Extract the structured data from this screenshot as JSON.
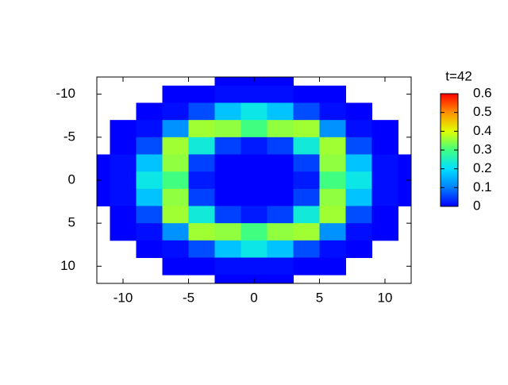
{
  "chart_data": {
    "type": "heatmap",
    "title": "t=42",
    "x": [
      -12,
      -10,
      -8,
      -6,
      -4,
      -2,
      0,
      2,
      4,
      6,
      8,
      10,
      12
    ],
    "y": [
      -12,
      -10,
      -8,
      -6,
      -4,
      -2,
      0,
      2,
      4,
      6,
      8,
      10,
      12
    ],
    "z": [
      [
        null,
        null,
        null,
        null,
        null,
        0,
        0,
        0,
        null,
        null,
        null,
        null,
        null
      ],
      [
        null,
        null,
        null,
        0,
        0,
        0.01,
        0.01,
        0.01,
        0,
        0,
        null,
        null,
        null
      ],
      [
        null,
        null,
        0,
        0.01,
        0.06,
        0.17,
        0.22,
        0.17,
        0.06,
        0.01,
        0,
        null,
        null
      ],
      [
        null,
        0,
        0.01,
        0.12,
        0.36,
        0.35,
        0.3,
        0.35,
        0.36,
        0.12,
        0.01,
        0,
        null
      ],
      [
        null,
        0,
        0.06,
        0.36,
        0.23,
        0.05,
        0.02,
        0.05,
        0.23,
        0.36,
        0.06,
        0,
        null
      ],
      [
        0,
        0.01,
        0.17,
        0.35,
        0.05,
        0,
        0,
        0,
        0.05,
        0.35,
        0.17,
        0.01,
        0
      ],
      [
        0,
        0.01,
        0.22,
        0.3,
        0.02,
        0,
        0,
        0,
        0.02,
        0.3,
        0.22,
        0.01,
        0
      ],
      [
        0,
        0.01,
        0.17,
        0.35,
        0.05,
        0,
        0,
        0,
        0.05,
        0.35,
        0.17,
        0.01,
        0
      ],
      [
        null,
        0,
        0.06,
        0.36,
        0.23,
        0.05,
        0.02,
        0.05,
        0.23,
        0.36,
        0.06,
        0,
        null
      ],
      [
        null,
        0,
        0.01,
        0.12,
        0.36,
        0.35,
        0.3,
        0.35,
        0.36,
        0.12,
        0.01,
        0,
        null
      ],
      [
        null,
        null,
        0,
        0.01,
        0.06,
        0.17,
        0.22,
        0.17,
        0.06,
        0.01,
        0,
        null,
        null
      ],
      [
        null,
        null,
        null,
        0,
        0,
        0.01,
        0.01,
        0.01,
        0,
        0,
        null,
        null,
        null
      ],
      [
        null,
        null,
        null,
        null,
        null,
        0,
        0,
        0,
        null,
        null,
        null,
        null,
        null
      ]
    ],
    "xlim": [
      -12,
      12
    ],
    "ylim": [
      -12,
      12
    ],
    "y_reversed": true,
    "xticks": [
      -10,
      -5,
      0,
      5,
      10
    ],
    "yticks": [
      -10,
      -5,
      0,
      5,
      10
    ],
    "zlim": [
      0,
      0.6
    ],
    "zticks": [
      0,
      0.1,
      0.2,
      0.3,
      0.4,
      0.5,
      0.6
    ],
    "colorscale": [
      "#0000ff",
      "#0080ff",
      "#00e0ff",
      "#40ff80",
      "#e0ff00",
      "#ff9000",
      "#ff0000"
    ]
  }
}
